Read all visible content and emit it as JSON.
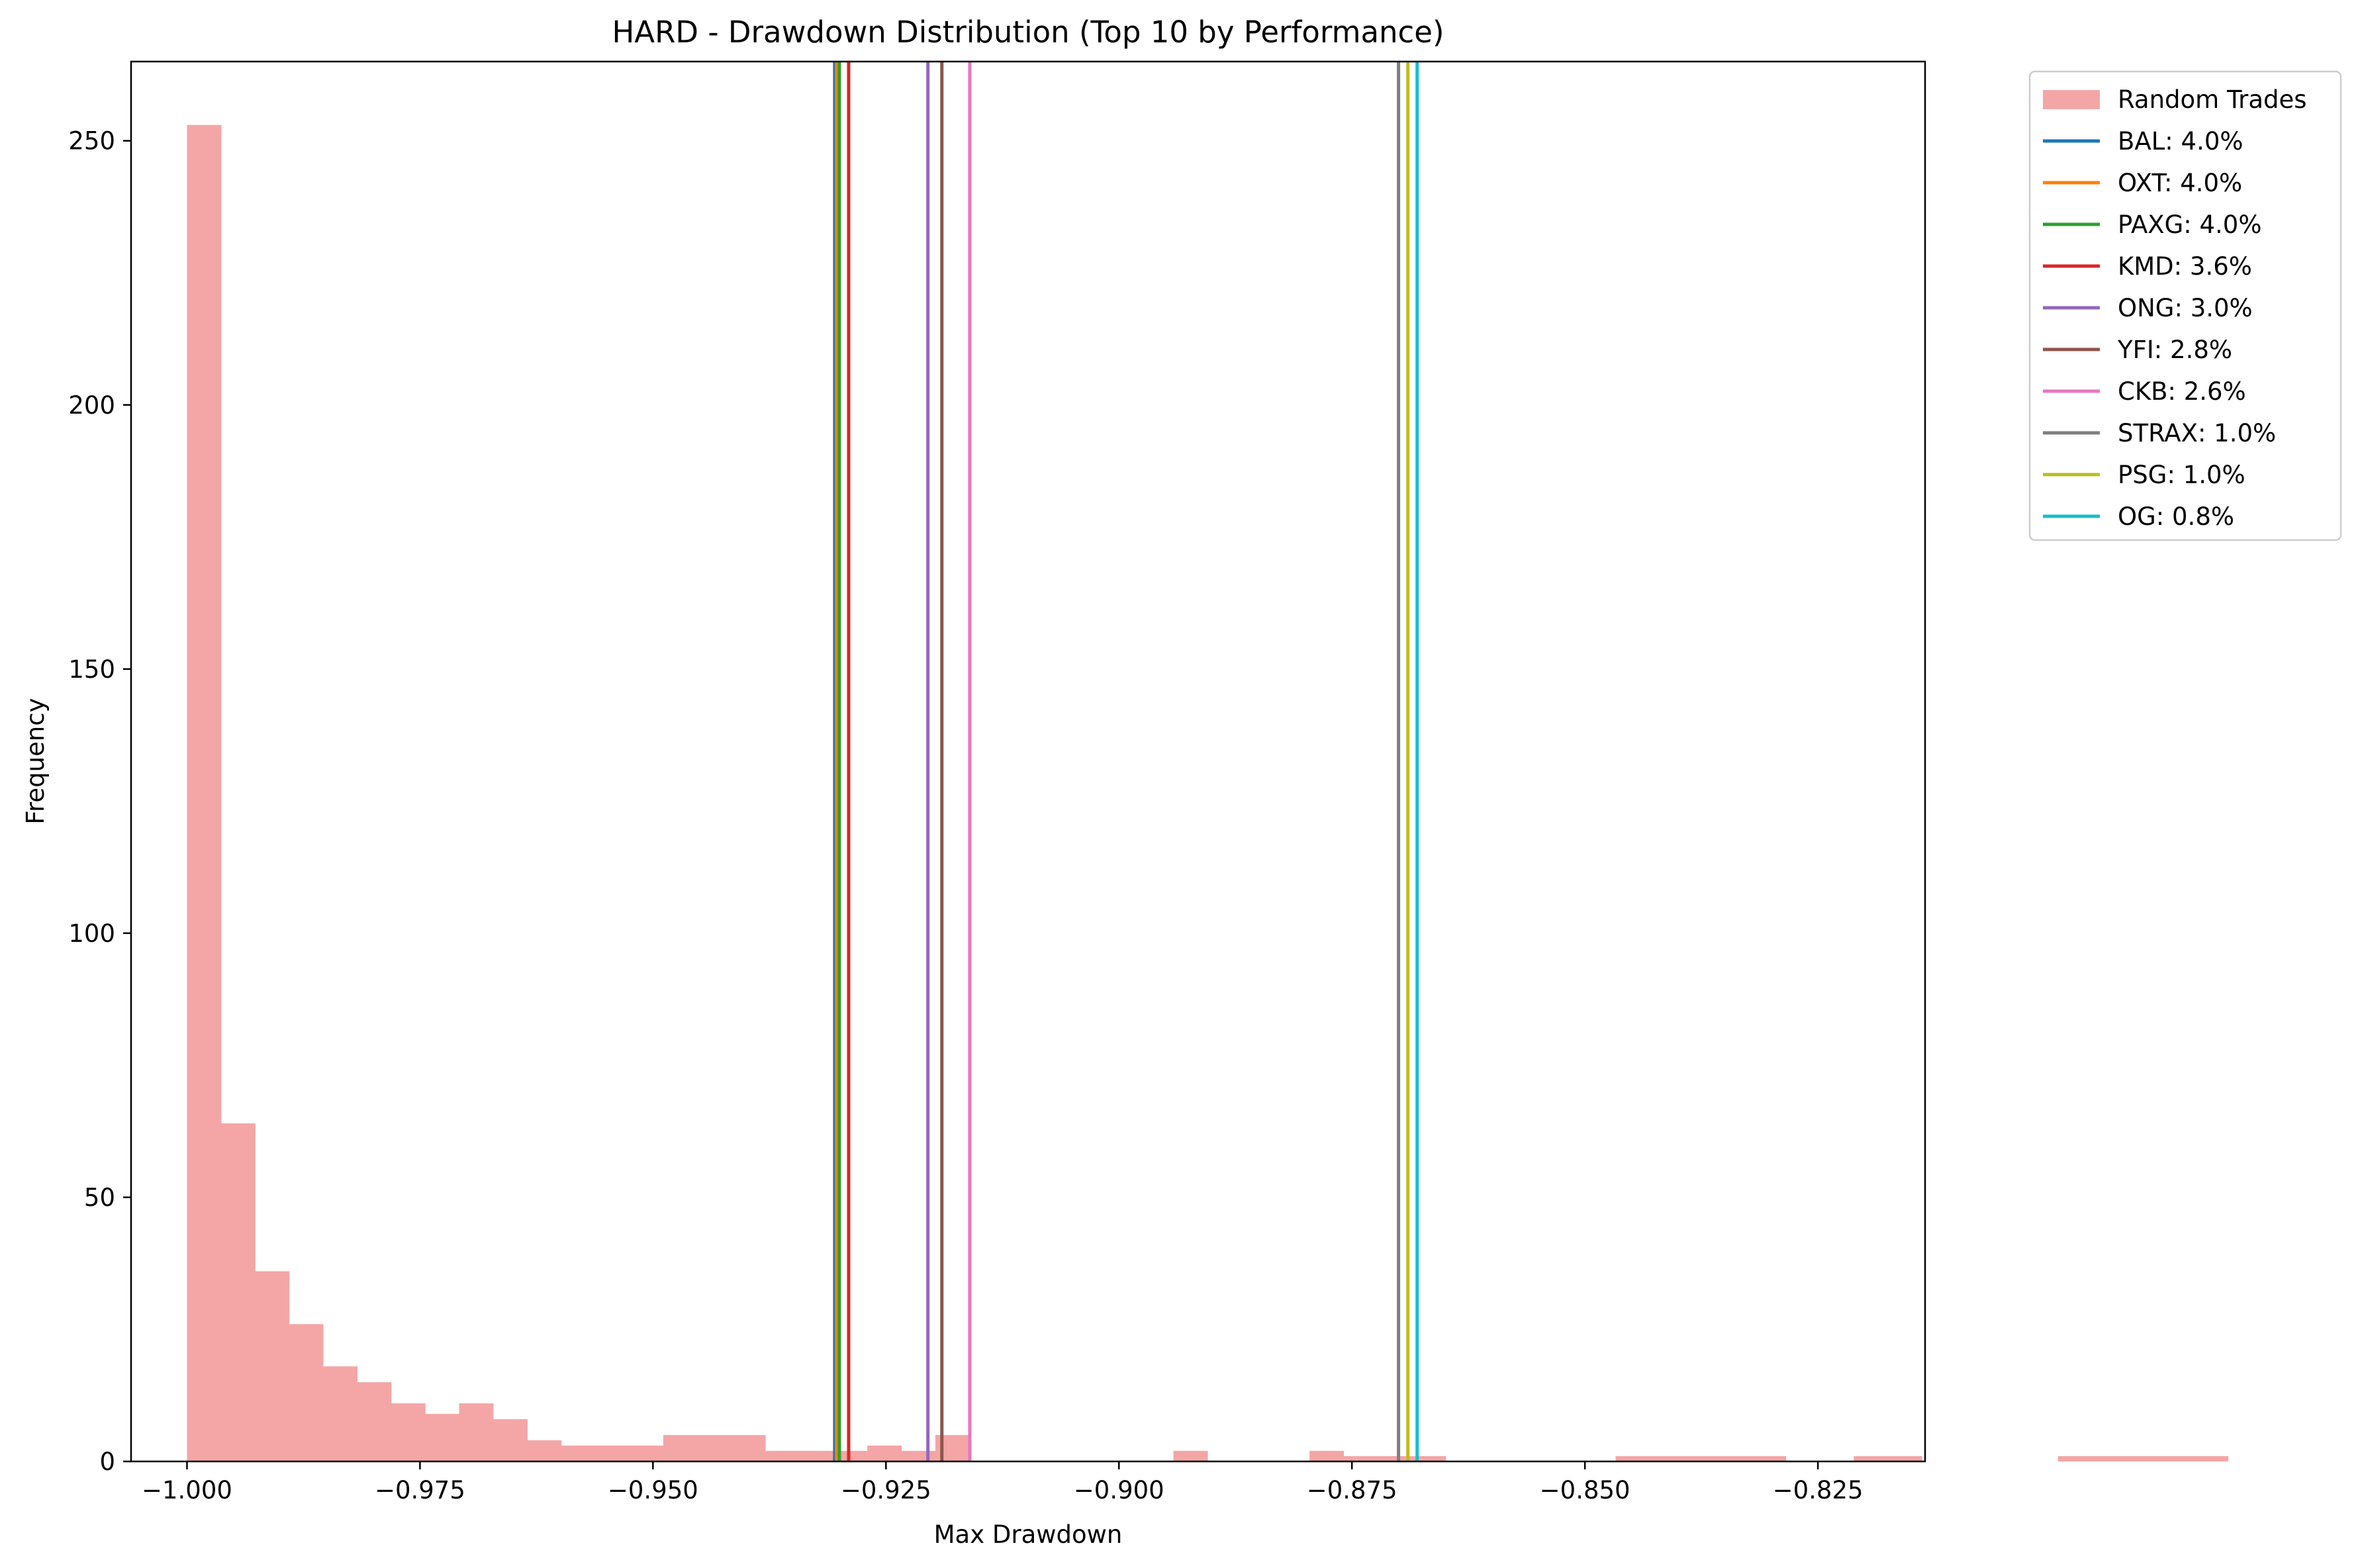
{
  "chart_data": {
    "type": "bar",
    "title": "HARD - Drawdown Distribution (Top 10 by Performance)",
    "xlabel": "Max Drawdown",
    "ylabel": "Frequency",
    "xlim": [
      -1.006,
      -0.8135
    ],
    "ylim": [
      0,
      265
    ],
    "grid": false,
    "legend_position": "outside-top-right",
    "xticks": [
      -1.0,
      -0.975,
      -0.95,
      -0.925,
      -0.9,
      -0.875,
      -0.85,
      -0.825
    ],
    "xtick_labels": [
      "−1.000",
      "−0.975",
      "−0.950",
      "−0.925",
      "−0.900",
      "−0.875",
      "−0.850",
      "−0.825"
    ],
    "yticks": [
      0,
      50,
      100,
      150,
      200,
      250
    ],
    "ytick_labels": [
      "0",
      "50",
      "100",
      "150",
      "200",
      "250"
    ],
    "histogram": {
      "name": "Random Trades",
      "color": "#f4a6a6",
      "bin_start": -1.0,
      "bin_width": 0.00365,
      "counts": [
        253,
        64,
        36,
        26,
        18,
        15,
        11,
        9,
        11,
        8,
        4,
        3,
        3,
        3,
        5,
        5,
        5,
        2,
        2,
        2,
        3,
        2,
        5,
        0,
        0,
        0,
        0,
        0,
        0,
        2,
        0,
        0,
        0,
        2,
        1,
        1,
        1,
        0,
        0,
        0,
        0,
        0,
        1,
        1,
        1,
        1,
        1,
        0,
        0,
        1,
        1,
        0,
        0,
        0,
        0,
        1,
        1,
        1,
        1,
        1,
        0,
        0,
        0,
        0,
        0,
        0,
        0,
        0,
        0,
        0,
        0,
        0,
        0,
        0,
        0,
        0,
        0,
        0,
        1,
        1
      ]
    },
    "series": [
      {
        "name": "BAL: 4.0%",
        "x": -0.9305,
        "color": "#1f77b4"
      },
      {
        "name": "OXT: 4.0%",
        "x": -0.9303,
        "color": "#ff7f0e"
      },
      {
        "name": "PAXG: 4.0%",
        "x": -0.93,
        "color": "#2ca02c"
      },
      {
        "name": "KMD: 3.6%",
        "x": -0.929,
        "color": "#d62728"
      },
      {
        "name": "ONG: 3.0%",
        "x": -0.9205,
        "color": "#9467bd"
      },
      {
        "name": "YFI: 2.8%",
        "x": -0.919,
        "color": "#8c564b"
      },
      {
        "name": "CKB: 2.6%",
        "x": -0.916,
        "color": "#e377c2"
      },
      {
        "name": "STRAX: 1.0%",
        "x": -0.87,
        "color": "#7f7f7f"
      },
      {
        "name": "PSG: 1.0%",
        "x": -0.869,
        "color": "#bcbd22"
      },
      {
        "name": "OG: 0.8%",
        "x": -0.868,
        "color": "#17becf"
      }
    ]
  }
}
